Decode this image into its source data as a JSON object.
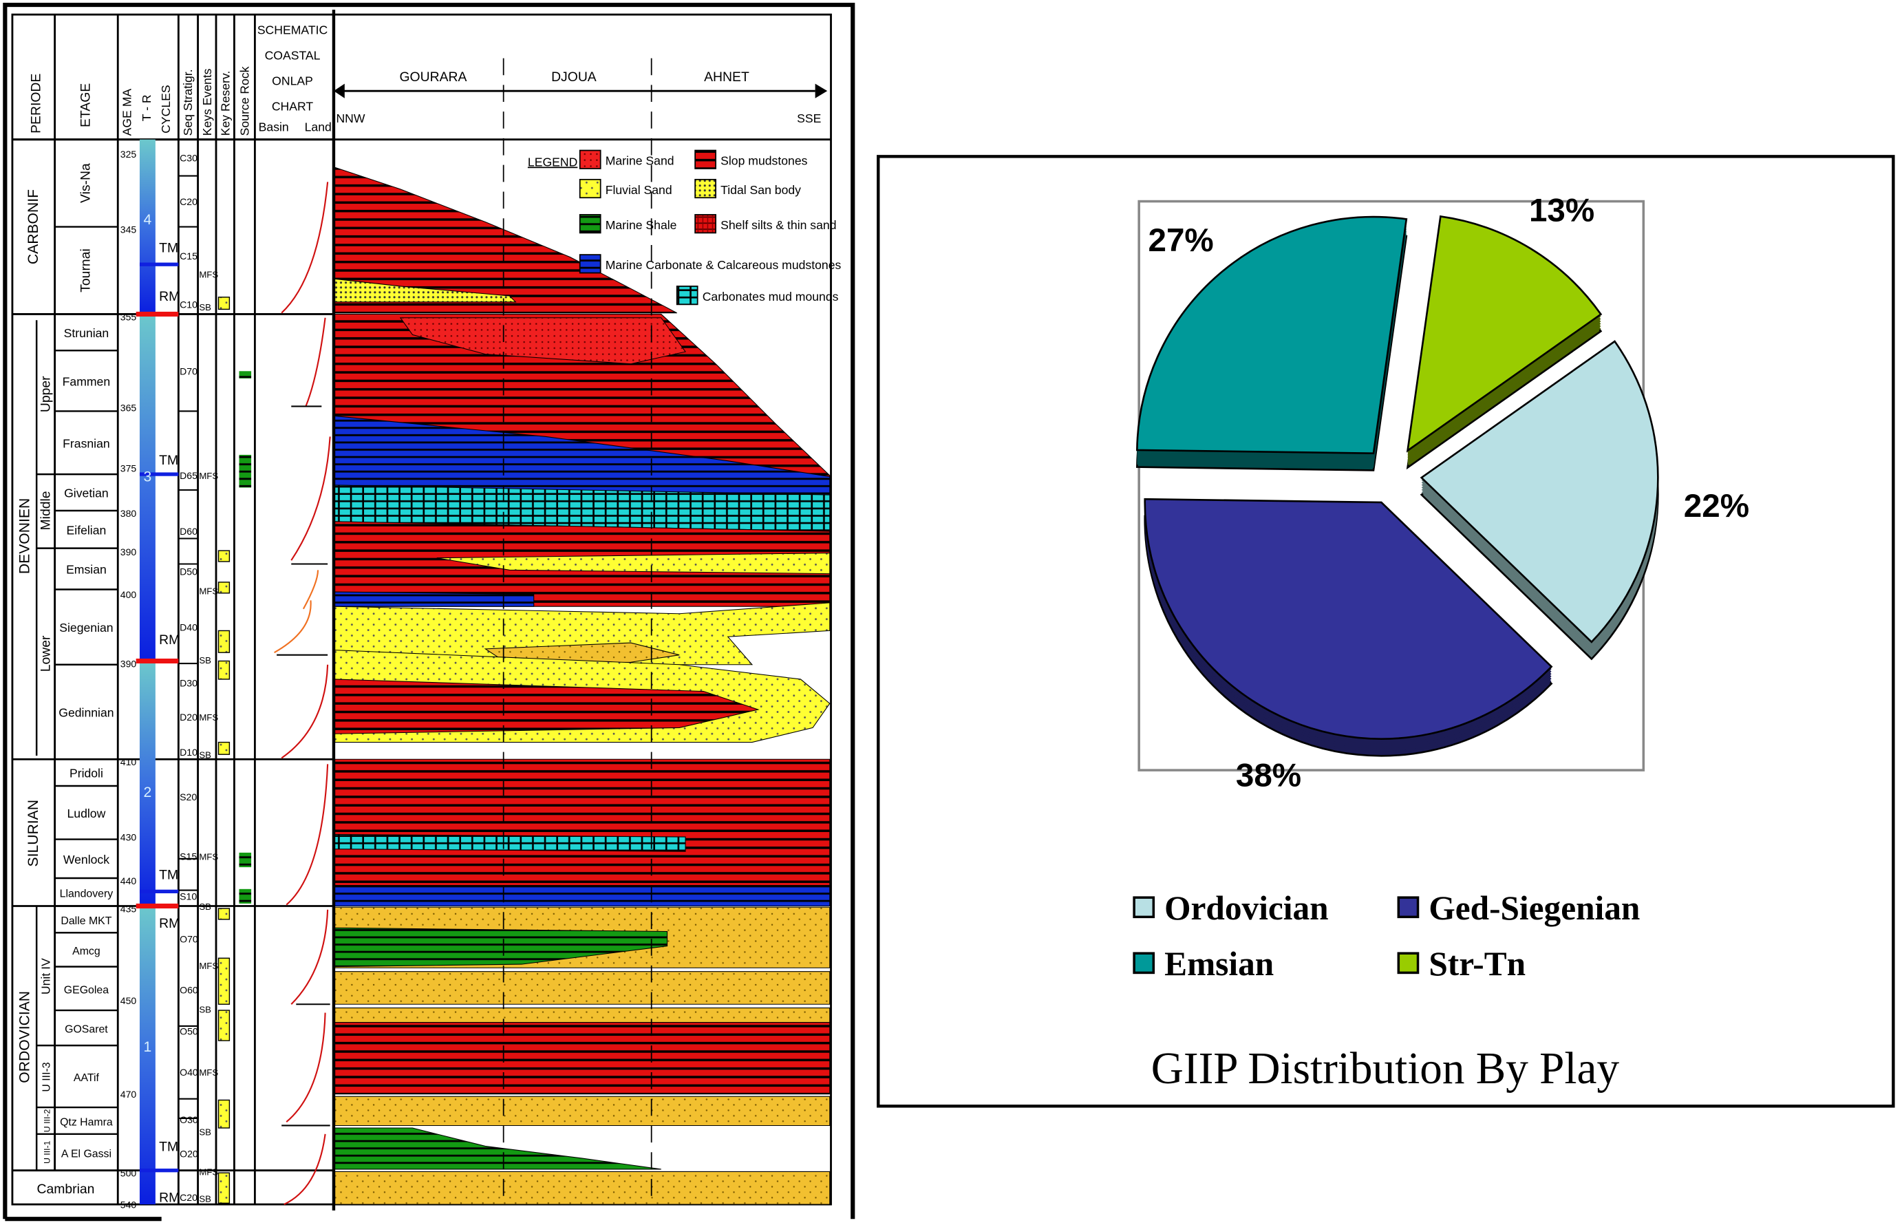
{
  "stratigraphic_chart": {
    "headers": {
      "periode": "PERIODE",
      "etage": "ETAGE",
      "age": "AGE MA",
      "tr": "T - R",
      "cycles": "CYCLES",
      "seq": "Seq Stratigr.",
      "keys_events": "Keys Events",
      "key_reserv": "Key Reserv.",
      "source_rock": "Source Rock",
      "onlap": [
        "SCHEMATIC",
        "COASTAL",
        "ONLAP",
        "CHART"
      ],
      "basin": "Basin",
      "land": "Land"
    },
    "periods": [
      "CARBONIF",
      "DEVONIEN",
      "SILURIAN",
      "ORDOVICIAN",
      "Cambrian"
    ],
    "subperiods": [
      "Upper",
      "Middle",
      "Lower",
      "Unit IV",
      "U III-3",
      "U III-2",
      "U III-1"
    ],
    "etages": [
      "Vis-Na",
      "Tournai",
      "Strunian",
      "Fammen",
      "Frasnian",
      "Givetian",
      "Eifelian",
      "Emsian",
      "Siegenian",
      "Gedinnian",
      "Pridoli",
      "Ludlow",
      "Wenlock",
      "Llandovery",
      "Dalle MKT",
      "Amcg",
      "GEGolea",
      "GOSaret",
      "AATif",
      "Qtz Hamra",
      "A El Gassi"
    ],
    "ages": [
      "325",
      "345",
      "355",
      "365",
      "375",
      "380",
      "390",
      "400",
      "390",
      "410",
      "430",
      "440",
      "435",
      "450",
      "470",
      "500",
      "540"
    ],
    "cycle_numbers": [
      "4",
      "3",
      "2",
      "1"
    ],
    "cycle_marks": [
      "TM",
      "RM",
      "TM",
      "RM",
      "TM",
      "RM",
      "TM",
      "RM"
    ],
    "sequences": [
      "C30",
      "C20",
      "C15",
      "C10",
      "D70",
      "D65",
      "D60",
      "D50",
      "D40",
      "D30",
      "D20",
      "D10",
      "S20",
      "S15",
      "S10",
      "O70",
      "O60",
      "O50",
      "O40",
      "O30",
      "O20",
      "C20"
    ],
    "key_events": [
      "MFS",
      "SB",
      "MFS",
      "MFS",
      "SB",
      "MFS",
      "SB",
      "MFS",
      "SB",
      "MFS",
      "SB",
      "MFS",
      "SB",
      "MFS",
      "SB"
    ],
    "regions": [
      "GOURARA",
      "DJOUA",
      "AHNET"
    ],
    "directions": {
      "left": "NNW",
      "right": "SSE"
    },
    "legend": {
      "title": "LEGEND",
      "items": [
        "Marine Sand",
        "Slop mudstones",
        "Fluvial Sand",
        "Tidal San body",
        "Marine Shale",
        "Shelf silts & thin sand",
        "Marine Carbonate & Calcareous mudstones",
        "Carbonates mud mounds"
      ]
    }
  },
  "chart_data": {
    "type": "pie",
    "title": "GIIP Distribution By Play",
    "categories": [
      "Ordovician",
      "Ged-Siegenian",
      "Emsian",
      "Str-Tn"
    ],
    "values": [
      22,
      38,
      27,
      13
    ],
    "labels": [
      "22%",
      "38%",
      "27%",
      "13%"
    ],
    "colors": [
      "#b8e0e4",
      "#333399",
      "#009999",
      "#99cc00"
    ],
    "legend_placement": "bottom",
    "style": "3d-exploded"
  }
}
